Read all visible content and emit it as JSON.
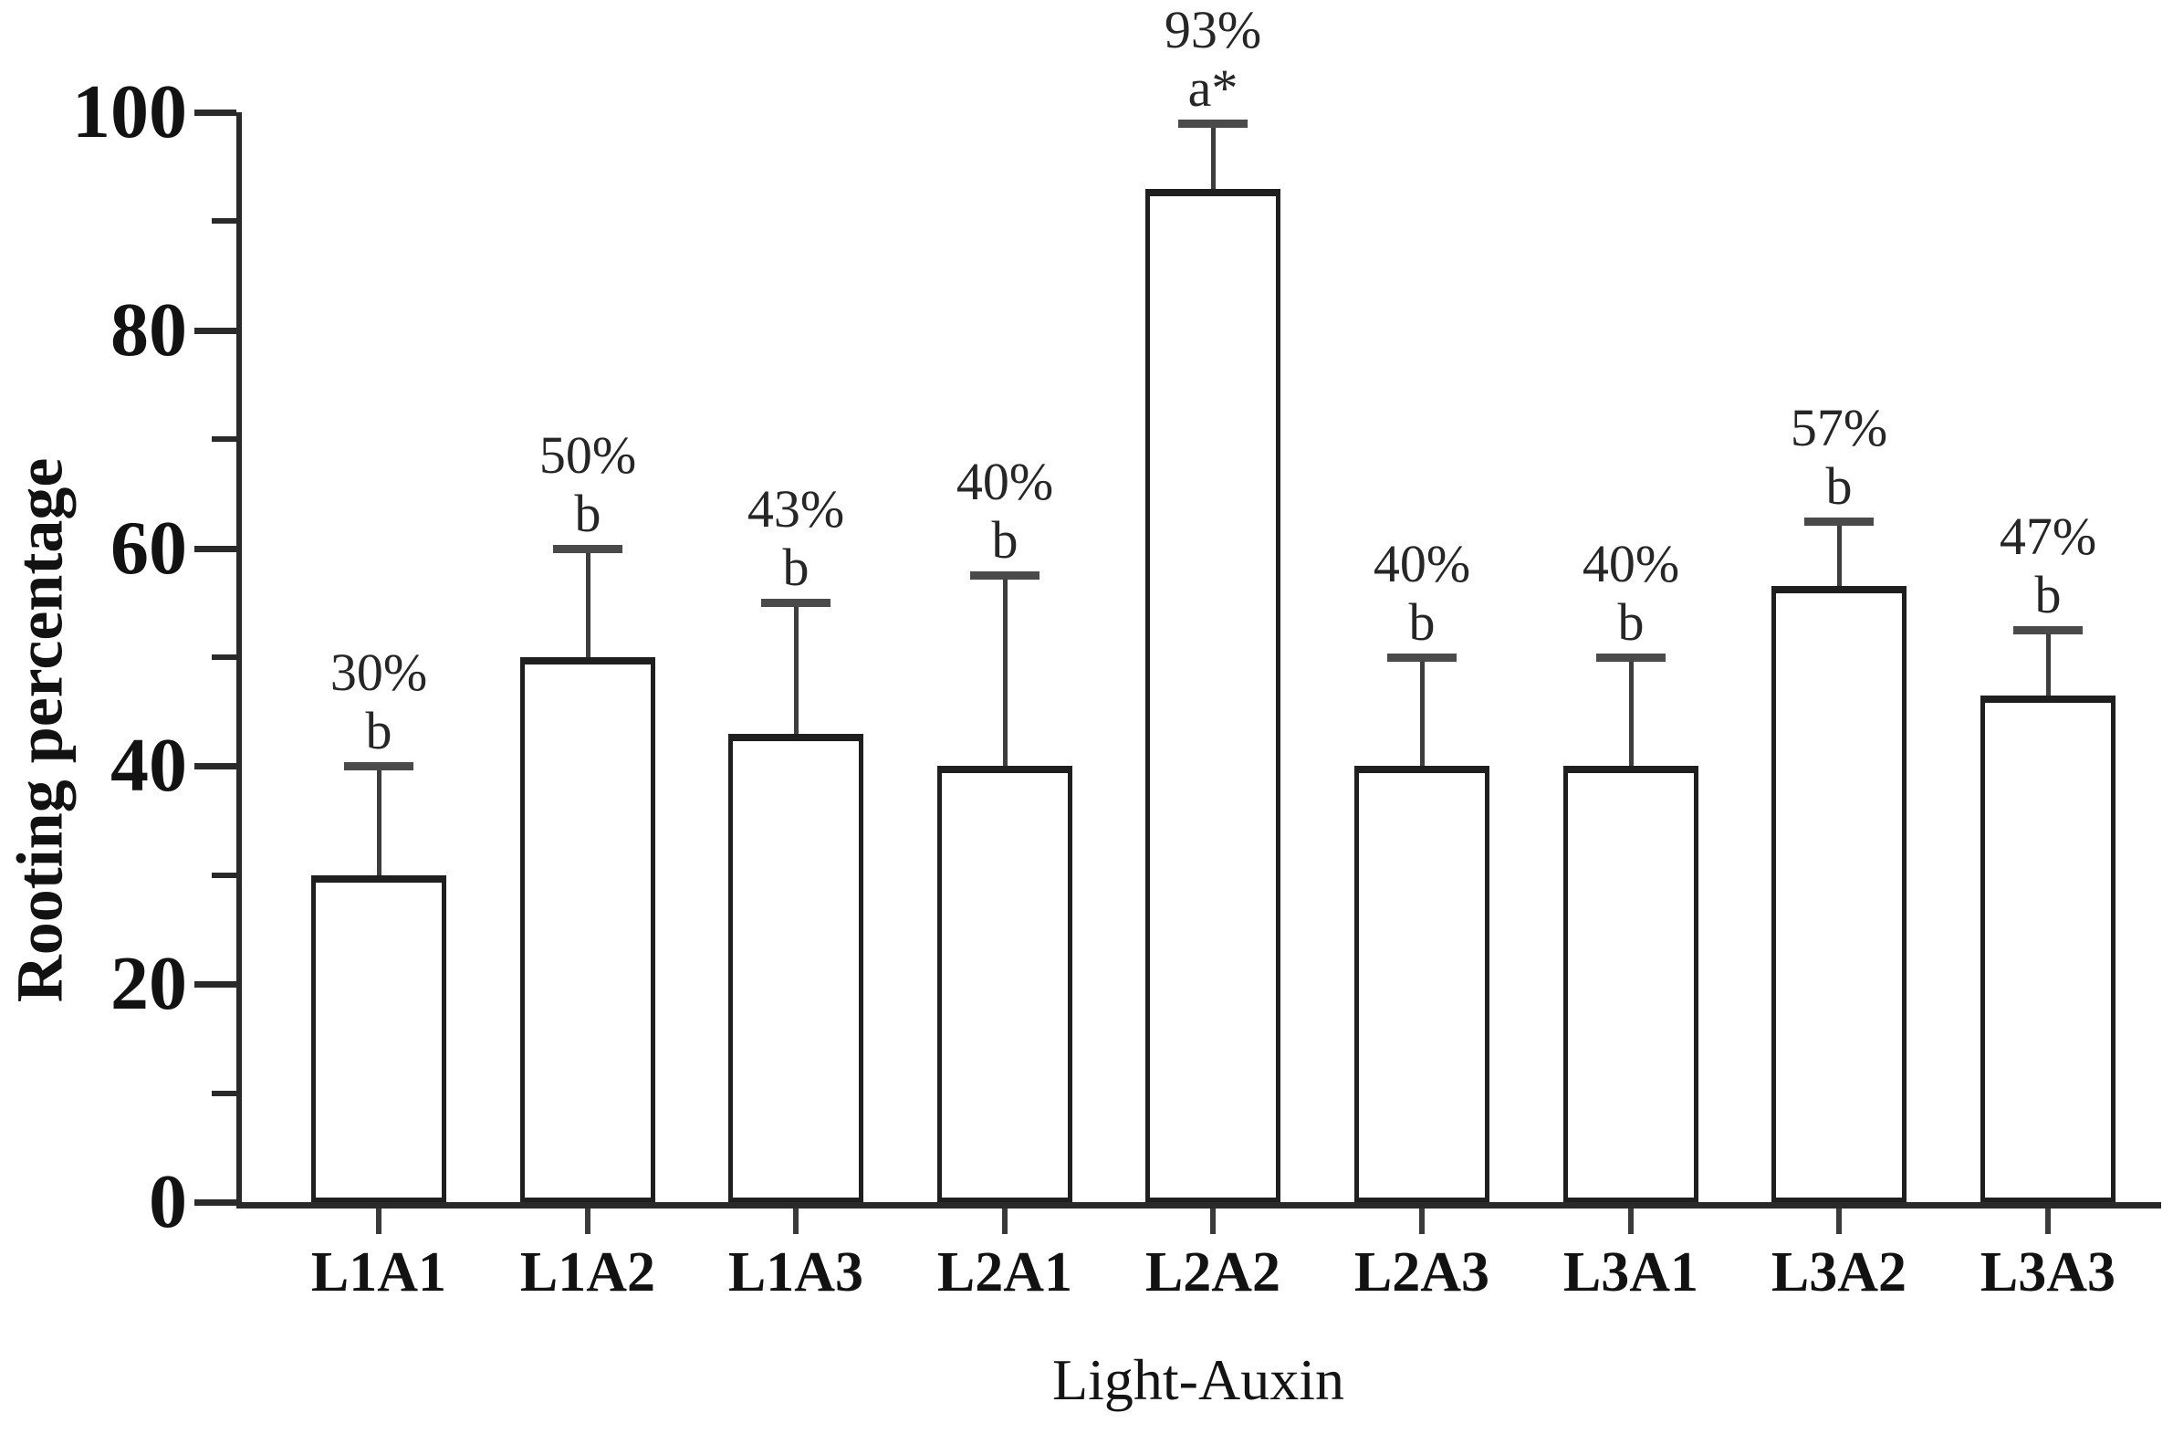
{
  "chart_data": {
    "type": "bar",
    "title": "",
    "xlabel": "Light-Auxin",
    "ylabel": "Rooting percentage",
    "categories": [
      "L1A1",
      "L1A2",
      "L1A3",
      "L2A1",
      "L2A2",
      "L2A3",
      "L3A1",
      "L3A2",
      "L3A3"
    ],
    "values": [
      30,
      50,
      43,
      40,
      93,
      40,
      40,
      56.5,
      46.5
    ],
    "error_plus": [
      10,
      10,
      12,
      17.5,
      6,
      10,
      10,
      6,
      6
    ],
    "error_bar_tops": [
      40,
      60,
      55,
      57.5,
      99,
      50,
      50,
      62.5,
      52.5
    ],
    "bar_value_labels": [
      "30%",
      "50%",
      "43%",
      "40%",
      "93%",
      "40%",
      "40%",
      "57%",
      "47%"
    ],
    "significance_letters": [
      "b",
      "b",
      "b",
      "b",
      "a*",
      "b",
      "b",
      "b",
      "b"
    ],
    "ylim": [
      0,
      100
    ],
    "y_major_ticks": [
      0,
      20,
      40,
      60,
      80,
      100
    ],
    "y_minor_ticks": [
      10,
      30,
      50,
      70,
      90
    ],
    "grid": "off",
    "legend": "none",
    "colors": {
      "background": "#ffffff",
      "bar_fill": "#ffffff",
      "bar_border": "#1f1f1f",
      "error_bar": "#3d3d3d",
      "error_cap": "#4a4a4a",
      "axis": "#2a2a2a",
      "tick_label_text": "#121212",
      "annotation_text": "#262626"
    }
  }
}
